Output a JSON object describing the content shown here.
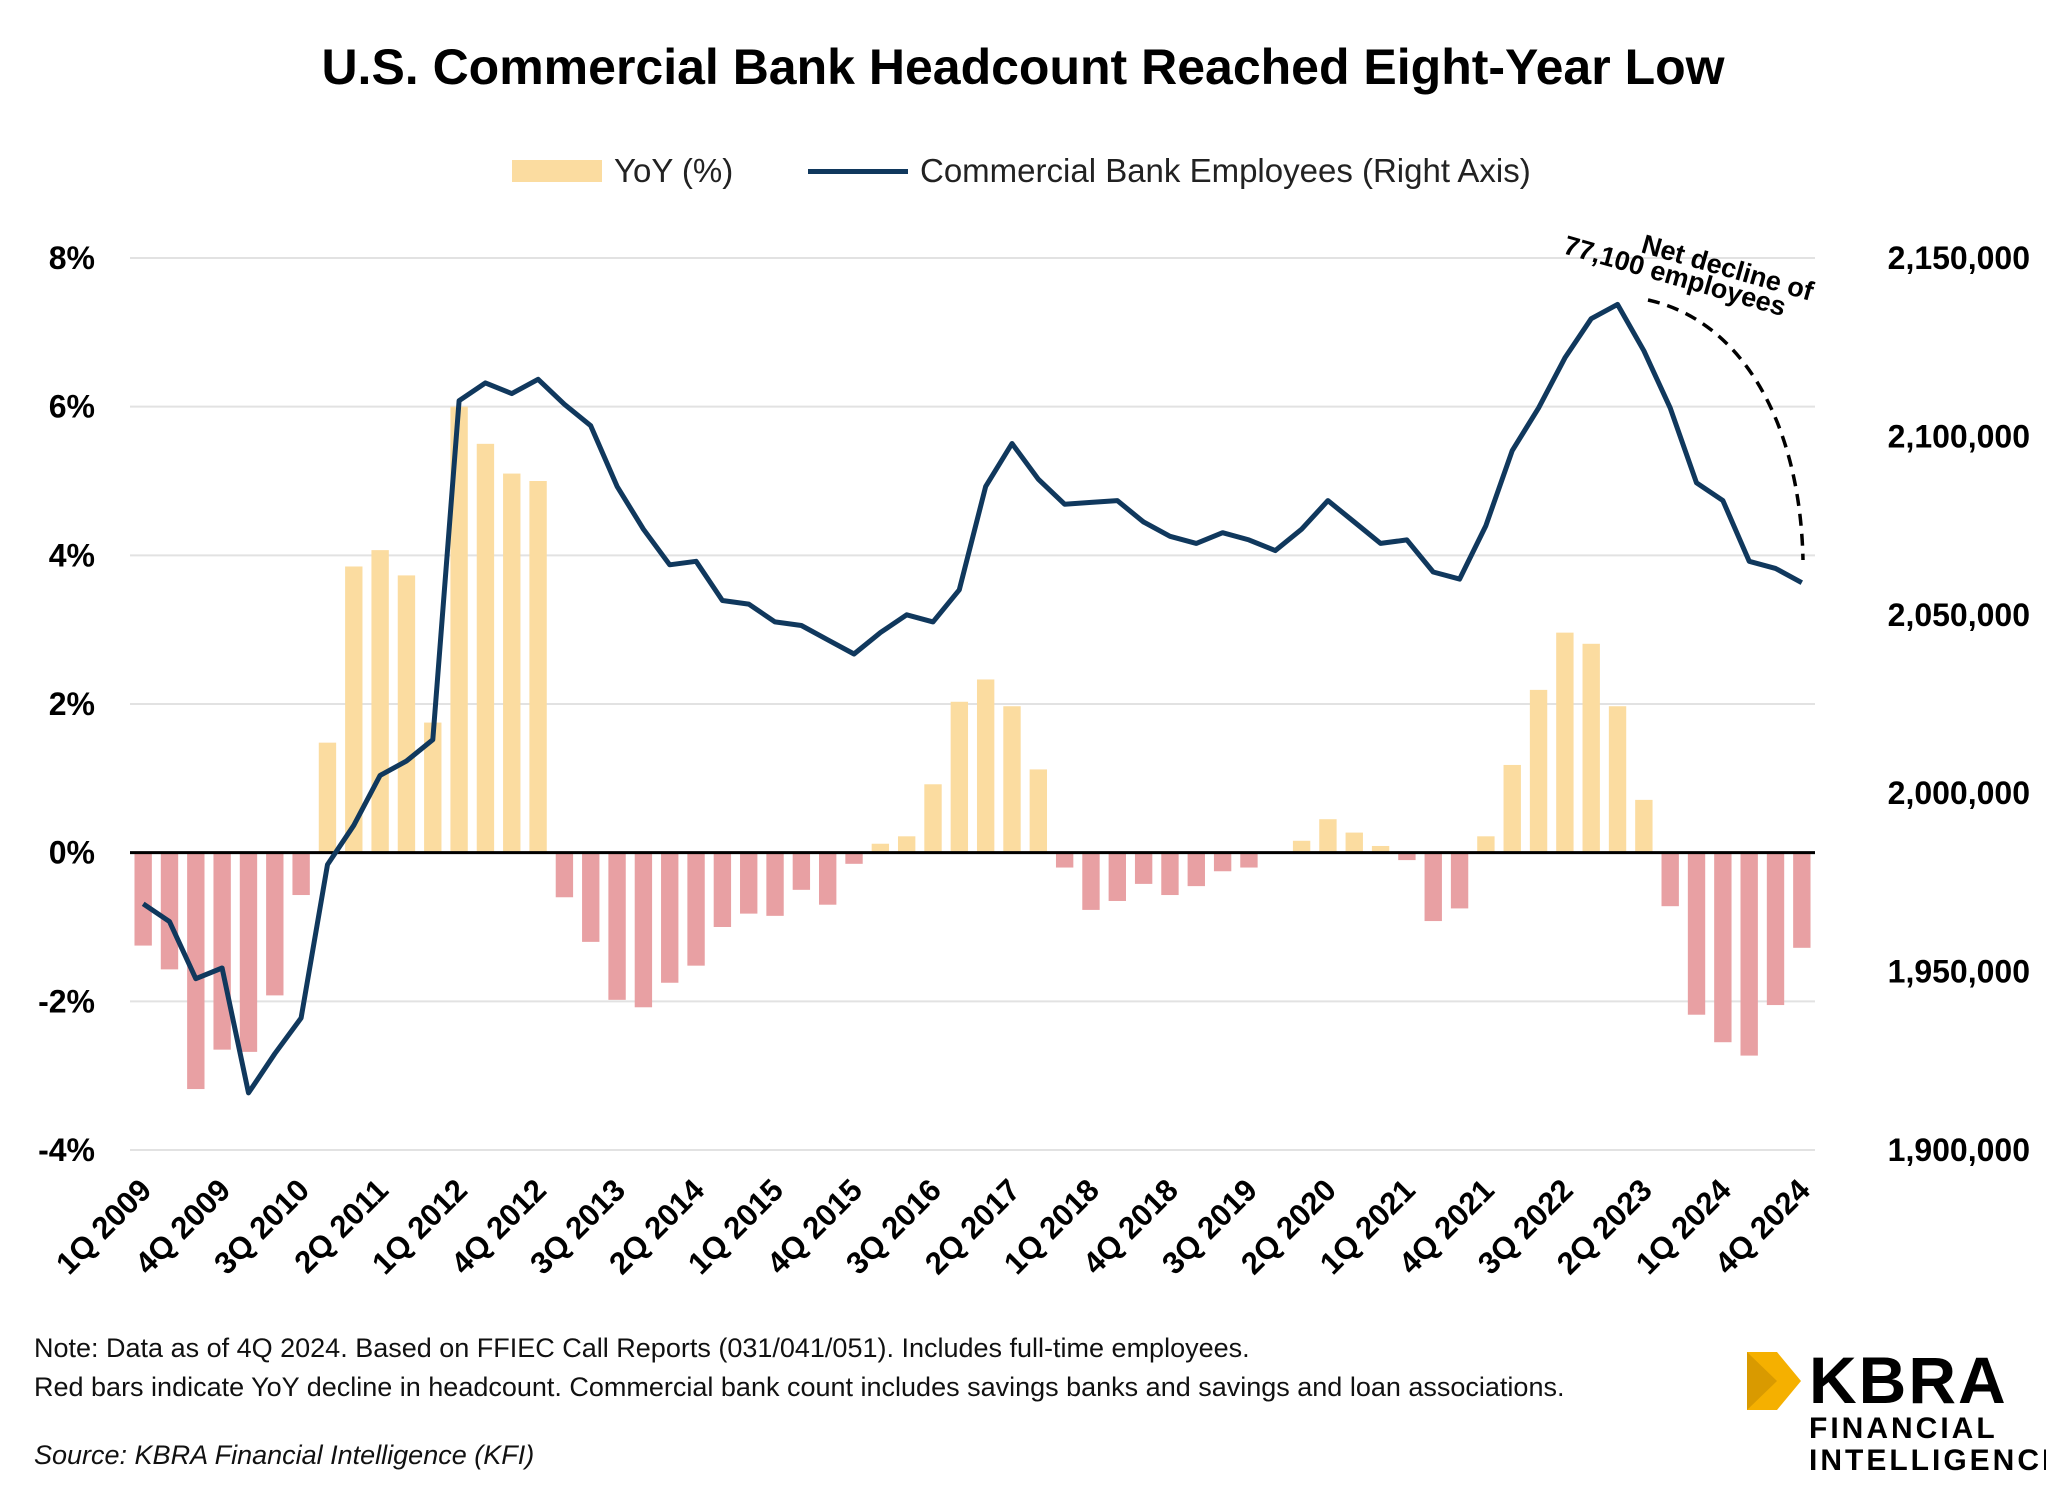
{
  "title": "U.S. Commercial Bank Headcount Reached Eight-Year Low",
  "legend": {
    "bar_label": "YoY (%)",
    "line_label": "Commercial Bank Employees (Right Axis)"
  },
  "annotation": {
    "line1": "Net decline of",
    "line2": "77,100 employees"
  },
  "notes": {
    "line1": "Note: Data as of 4Q 2024. Based on FFIEC Call Reports (031/041/051).  Includes full-time employees.",
    "line2": "Red bars indicate YoY decline in headcount. Commercial bank count includes savings banks and savings and loan associations."
  },
  "source": "Source: KBRA Financial Intelligence (KFI)",
  "logo": {
    "brand": "KBRA",
    "line1": "FINANCIAL",
    "line2": "INTELLIGENCE"
  },
  "colors": {
    "positive_bar": "#fbdca0",
    "negative_bar": "#e8a0a3",
    "line": "#10385d",
    "logo_accent": "#f5b000"
  },
  "chart_data": {
    "type": "bar+line",
    "categories": [
      "1Q 2009",
      "2Q 2009",
      "3Q 2009",
      "4Q 2009",
      "1Q 2010",
      "2Q 2010",
      "3Q 2010",
      "4Q 2010",
      "1Q 2011",
      "2Q 2011",
      "3Q 2011",
      "4Q 2011",
      "1Q 2012",
      "2Q 2012",
      "3Q 2012",
      "4Q 2012",
      "1Q 2013",
      "2Q 2013",
      "3Q 2013",
      "4Q 2013",
      "1Q 2014",
      "2Q 2014",
      "3Q 2014",
      "4Q 2014",
      "1Q 2015",
      "2Q 2015",
      "3Q 2015",
      "4Q 2015",
      "1Q 2016",
      "2Q 2016",
      "3Q 2016",
      "4Q 2016",
      "1Q 2017",
      "2Q 2017",
      "3Q 2017",
      "4Q 2017",
      "1Q 2018",
      "2Q 2018",
      "3Q 2018",
      "4Q 2018",
      "1Q 2019",
      "2Q 2019",
      "3Q 2019",
      "4Q 2019",
      "1Q 2020",
      "2Q 2020",
      "3Q 2020",
      "4Q 2020",
      "1Q 2021",
      "2Q 2021",
      "3Q 2021",
      "4Q 2021",
      "1Q 2022",
      "2Q 2022",
      "3Q 2022",
      "4Q 2022",
      "1Q 2023",
      "2Q 2023",
      "3Q 2023",
      "4Q 2023",
      "1Q 2024",
      "2Q 2024",
      "3Q 2024",
      "4Q 2024"
    ],
    "x_tick_labels": [
      "1Q 2009",
      "4Q 2009",
      "3Q 2010",
      "2Q 2011",
      "1Q 2012",
      "4Q 2012",
      "3Q 2013",
      "2Q 2014",
      "1Q 2015",
      "4Q 2015",
      "3Q 2016",
      "2Q 2017",
      "1Q 2018",
      "4Q 2018",
      "3Q 2019",
      "2Q 2020",
      "1Q 2021",
      "4Q 2021",
      "3Q 2022",
      "2Q 2023",
      "1Q 2024",
      "4Q 2024"
    ],
    "series": [
      {
        "name": "YoY (%)",
        "axis": "left",
        "type": "bar",
        "values": [
          -1.25,
          -1.57,
          -3.18,
          -2.65,
          -2.68,
          -1.92,
          -0.57,
          1.48,
          3.85,
          4.07,
          3.73,
          1.75,
          6.0,
          5.5,
          5.1,
          5.0,
          -0.6,
          -1.2,
          -1.98,
          -2.08,
          -1.75,
          -1.52,
          -1.0,
          -0.82,
          -0.85,
          -0.5,
          -0.7,
          -0.15,
          0.12,
          0.22,
          0.92,
          2.03,
          2.33,
          1.97,
          1.12,
          -0.2,
          -0.77,
          -0.65,
          -0.42,
          -0.57,
          -0.45,
          -0.25,
          -0.2,
          0.0,
          0.16,
          0.45,
          0.27,
          0.09,
          -0.1,
          -0.92,
          -0.75,
          0.22,
          1.18,
          2.19,
          2.96,
          2.81,
          1.97,
          0.71,
          -0.72,
          -2.18,
          -2.55,
          -2.73,
          -2.05,
          -1.28
        ]
      },
      {
        "name": "Commercial Bank Employees (Right Axis)",
        "axis": "right",
        "type": "line",
        "values": [
          1969000,
          1964000,
          1948000,
          1951000,
          1916000,
          1927000,
          1937000,
          1980000,
          1991000,
          2005000,
          2009000,
          2015000,
          2110000,
          2115000,
          2112000,
          2116000,
          2109000,
          2103000,
          2086000,
          2074000,
          2064000,
          2065000,
          2054000,
          2053000,
          2048000,
          2047000,
          2043000,
          2039000,
          2045000,
          2050000,
          2048000,
          2057000,
          2086000,
          2098000,
          2088000,
          2081000,
          2081500,
          2082000,
          2076000,
          2072000,
          2070000,
          2073000,
          2071000,
          2068000,
          2074000,
          2082000,
          2076000,
          2070000,
          2071000,
          2062000,
          2060000,
          2075000,
          2096000,
          2108000,
          2122000,
          2133000,
          2137000,
          2124000,
          2108000,
          2087000,
          2082000,
          2065000,
          2063000,
          2059000
        ]
      }
    ],
    "left_axis": {
      "min": -4,
      "max": 8,
      "step": 2,
      "tick_labels": [
        "-4%",
        "-2%",
        "0%",
        "2%",
        "4%",
        "6%",
        "8%"
      ]
    },
    "right_axis": {
      "min": 1900000,
      "max": 2150000,
      "step": 50000,
      "tick_labels": [
        "1,900,000",
        "1,950,000",
        "2,000,000",
        "2,050,000",
        "2,100,000",
        "2,150,000"
      ]
    },
    "grid": true,
    "legend_position": "top-center",
    "annotation_text": "Net decline of 77,100 employees"
  }
}
